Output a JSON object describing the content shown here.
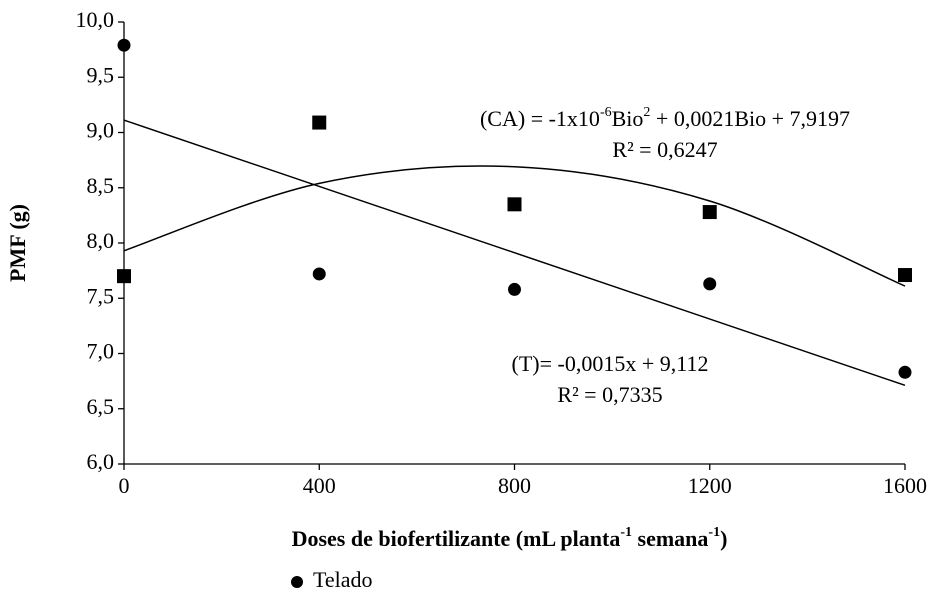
{
  "chart_data": {
    "type": "scatter",
    "y_label": "PMF (g)",
    "x_label": [
      "Doses de biofertilizante (mL planta",
      "-1",
      " semana",
      "-1",
      ")"
    ],
    "xlim": [
      0,
      1600
    ],
    "xticks": [
      0,
      400,
      800,
      1200,
      1600
    ],
    "ylim": [
      6,
      10
    ],
    "yticks": [
      {
        "value": 6,
        "label": "6,0"
      },
      {
        "value": 6.5,
        "label": "6,5"
      },
      {
        "value": 7,
        "label": "7,0"
      },
      {
        "value": 7.5,
        "label": "7,5"
      },
      {
        "value": 8,
        "label": "8,0"
      },
      {
        "value": 8.5,
        "label": "8,5"
      },
      {
        "value": 9,
        "label": "9,0"
      },
      {
        "value": 9.5,
        "label": "9,5"
      },
      {
        "value": 10,
        "label": "10,0"
      }
    ],
    "series": [
      {
        "name": "Telado",
        "marker": "circle",
        "color": "#000000",
        "x": [
          0,
          400,
          800,
          1200,
          1600
        ],
        "values": [
          9.79,
          7.72,
          7.58,
          7.63,
          6.83
        ],
        "trend_x": [
          0,
          1600
        ],
        "trend_values": [
          9.112,
          6.712
        ],
        "equation": [
          "(T)= -0,0015x + 9,112"
        ],
        "r2": "R² = 0,7335"
      },
      {
        "marker": "square",
        "color": "#000000",
        "x": [
          0,
          400,
          800,
          1200,
          1600
        ],
        "values": [
          7.7,
          9.09,
          8.35,
          8.28,
          7.71
        ],
        "trend_x": [
          0,
          400,
          800,
          1200,
          1600
        ],
        "trend_values": [
          7.93,
          8.54,
          8.69,
          8.38,
          7.61
        ],
        "equation": [
          "(CA) = -1x10",
          "-6",
          "Bio",
          "2",
          " + 0,0021Bio + 7,9197"
        ],
        "r2": "R² = 0,6247"
      }
    ]
  }
}
